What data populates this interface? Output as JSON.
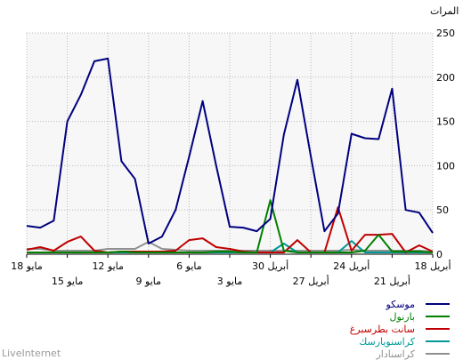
{
  "brand": "LiveInternet",
  "chart_data": {
    "type": "line",
    "ylabel": "المرات",
    "ylim": [
      0,
      250
    ],
    "y_ticks": [
      0,
      50,
      100,
      150,
      200,
      250
    ],
    "grid": true,
    "legend_position": "bottom-right",
    "x": [
      "18 أبريل",
      "19 أبريل",
      "20 أبريل",
      "21 أبريل",
      "22 أبريل",
      "23 أبريل",
      "24 أبريل",
      "25 أبريل",
      "26 أبريل",
      "27 أبريل",
      "28 أبريل",
      "29 أبريل",
      "30 أبريل",
      "1 مايو",
      "2 مايو",
      "3 مايو",
      "4 مايو",
      "5 مايو",
      "6 مايو",
      "7 مايو",
      "8 مايو",
      "9 مايو",
      "10 مايو",
      "11 مايو",
      "12 مايو",
      "13 مايو",
      "14 مايو",
      "15 مايو",
      "16 مايو",
      "17 مايو",
      "18 مايو"
    ],
    "x_ticks_top": [
      "18 أبريل",
      "24 أبريل",
      "30 أبريل",
      "6 مايو",
      "12 مايو",
      "18 مايو"
    ],
    "x_ticks_bottom": [
      "21 أبريل",
      "27 أبريل",
      "3 مايو",
      "9 مايو",
      "15 مايو"
    ],
    "series": [
      {
        "name": "موسكو",
        "color": "#00007f",
        "values": [
          24,
          47,
          50,
          187,
          130,
          131,
          136,
          46,
          26,
          110,
          197,
          135,
          40,
          26,
          30,
          31,
          100,
          173,
          110,
          50,
          20,
          12,
          85,
          105,
          221,
          218,
          180,
          150,
          38,
          30,
          32
        ]
      },
      {
        "name": "بارنول",
        "color": "#008000",
        "values": [
          2,
          3,
          3,
          3,
          22,
          4,
          2,
          2,
          2,
          2,
          2,
          4,
          61,
          2,
          2,
          3,
          3,
          2,
          2,
          2,
          2,
          2,
          2,
          3,
          2,
          2,
          2,
          2,
          2,
          2,
          2
        ]
      },
      {
        "name": "سانت بطرسبرغ",
        "color": "#c00000",
        "values": [
          3,
          10,
          2,
          23,
          22,
          22,
          4,
          53,
          2,
          2,
          16,
          2,
          2,
          2,
          3,
          6,
          8,
          18,
          16,
          4,
          3,
          3,
          3,
          3,
          2,
          4,
          20,
          14,
          4,
          8,
          5
        ]
      },
      {
        "name": "كراسنويارسك",
        "color": "#009999",
        "values": [
          2,
          2,
          2,
          2,
          2,
          2,
          15,
          2,
          2,
          2,
          2,
          12,
          2,
          2,
          2,
          2,
          2,
          2,
          2,
          2,
          2,
          2,
          2,
          2,
          2,
          2,
          2,
          2,
          2,
          2,
          2
        ]
      },
      {
        "name": "كراسنادار",
        "color": "#909090",
        "values": [
          3,
          4,
          4,
          4,
          4,
          4,
          5,
          4,
          4,
          4,
          4,
          4,
          4,
          4,
          4,
          4,
          4,
          4,
          4,
          5,
          6,
          14,
          6,
          6,
          6,
          4,
          4,
          4,
          4,
          6,
          6
        ]
      }
    ]
  }
}
